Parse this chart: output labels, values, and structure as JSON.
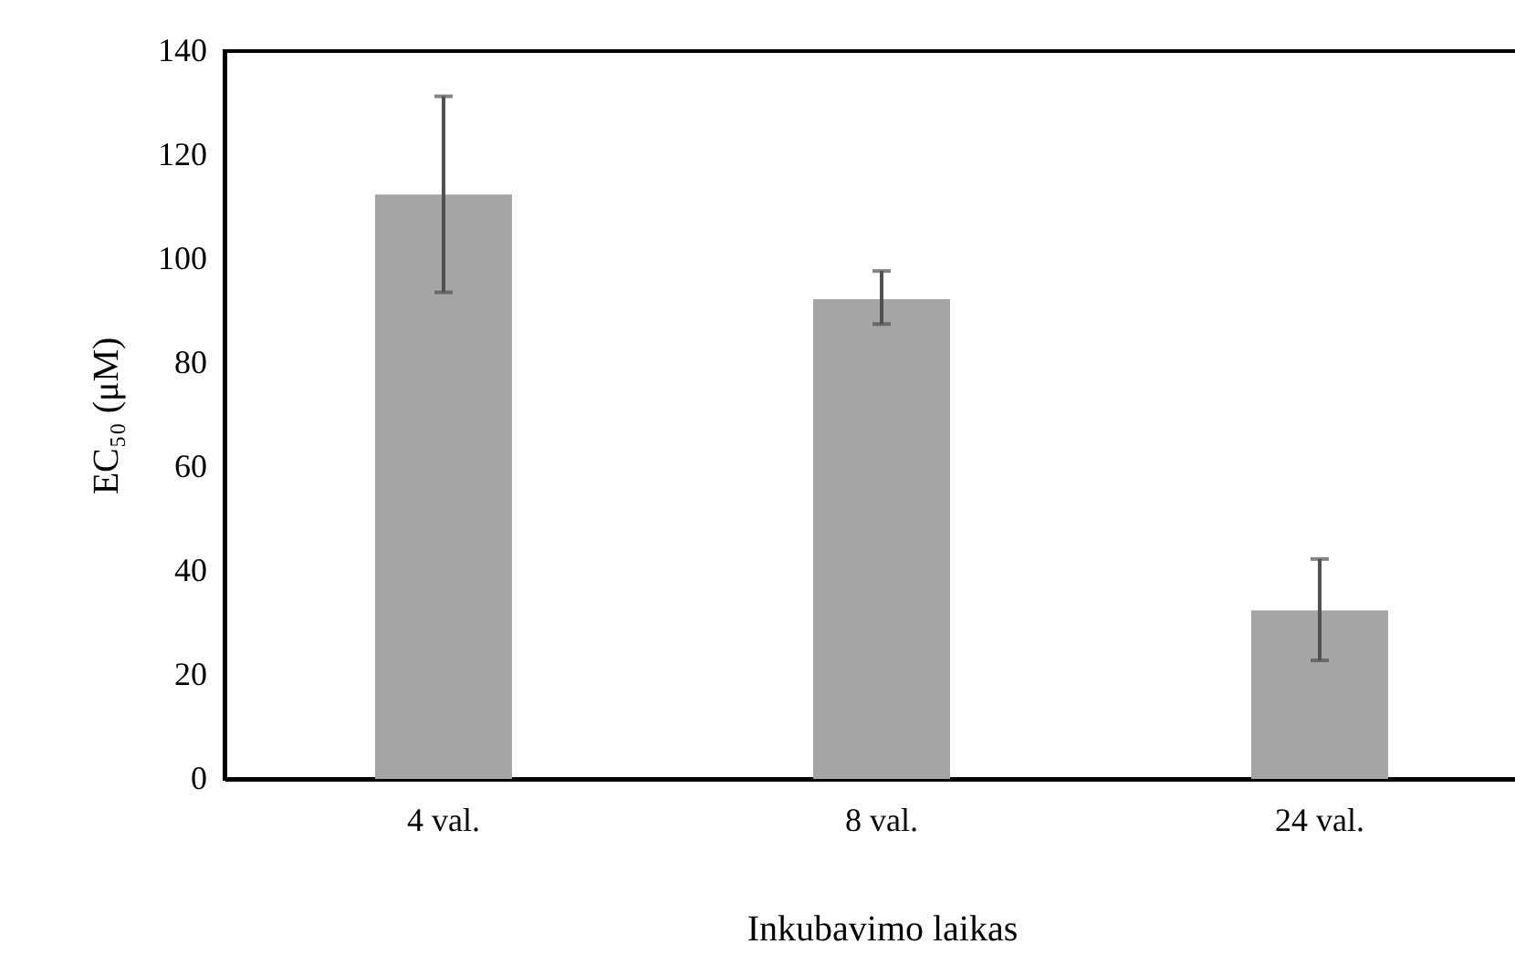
{
  "chart_data": {
    "type": "bar",
    "xlabel": "Inkubavimo laikas",
    "ylabel": "EC₅₀ (μM)",
    "categories": [
      "4 val.",
      "8 val.",
      "24 val."
    ],
    "values": [
      112.4,
      92.3,
      32.4
    ],
    "errors": [
      [
        93.6,
        131.3
      ],
      [
        87.5,
        97.7
      ],
      [
        22.8,
        42.3
      ]
    ],
    "color": "#a5a5a5",
    "ylim": [
      0,
      140
    ],
    "yticks": [
      0,
      20,
      40,
      60,
      80,
      100,
      120,
      140
    ],
    "grid": false
  }
}
